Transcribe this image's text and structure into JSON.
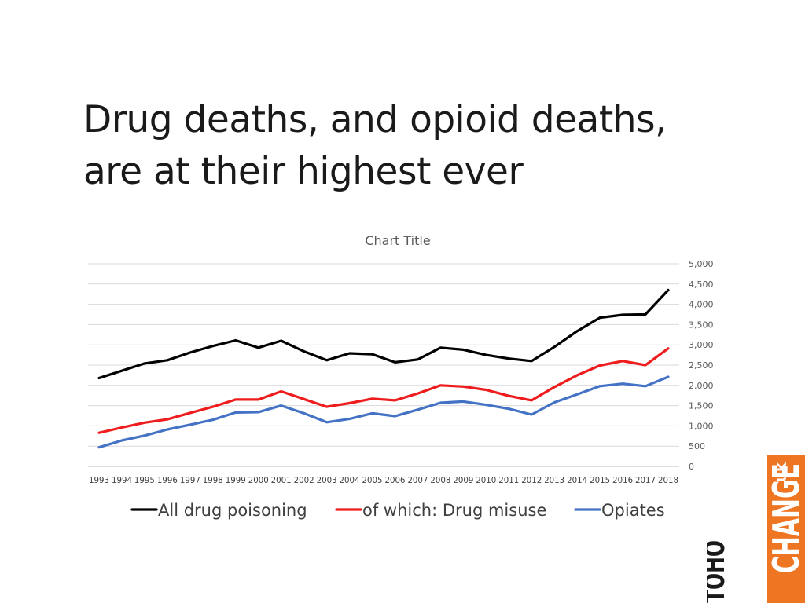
{
  "slide": {
    "title_line1": "Drug deaths, and opioid deaths,",
    "title_line2": "are at their highest ever"
  },
  "logo": {
    "text_vertical_left": "TOHO",
    "text_vertical_right": "CHANGE",
    "text_superscript": "UK",
    "colors": {
      "left": "#1a1a1a",
      "right": "#ee7623"
    }
  },
  "chart_data": {
    "type": "line",
    "title": "Chart Title",
    "x": [
      "1993",
      "1994",
      "1995",
      "1996",
      "1997",
      "1998",
      "1999",
      "2000",
      "2001",
      "2002",
      "2003",
      "2004",
      "2005",
      "2006",
      "2007",
      "2008",
      "2009",
      "2010",
      "2011",
      "2012",
      "2013",
      "2014",
      "2015",
      "2016",
      "2017",
      "2018"
    ],
    "yticks": [
      "0",
      "500",
      "1,000",
      "1,500",
      "2,000",
      "2,500",
      "3,000",
      "3,500",
      "4,000",
      "4,500",
      "5,000"
    ],
    "ylim": [
      0,
      5000
    ],
    "y_axis_side": "right",
    "grid": true,
    "legend_position": "bottom",
    "series": [
      {
        "name": "All drug poisoning",
        "color": "#000000",
        "values": [
          2180,
          2360,
          2540,
          2620,
          2810,
          2970,
          3110,
          2930,
          3100,
          2840,
          2620,
          2790,
          2770,
          2570,
          2640,
          2930,
          2880,
          2750,
          2660,
          2600,
          2950,
          3340,
          3670,
          3740,
          3750,
          4350
        ]
      },
      {
        "name": "of which: Drug misuse",
        "color": "#ee1c1c",
        "values": [
          830,
          960,
          1080,
          1160,
          1320,
          1470,
          1650,
          1650,
          1850,
          1660,
          1470,
          1560,
          1670,
          1630,
          1800,
          2000,
          1970,
          1890,
          1740,
          1630,
          1960,
          2250,
          2490,
          2600,
          2500,
          2910
        ]
      },
      {
        "name": "Opiates",
        "color": "#4472c4",
        "values": [
          470,
          640,
          760,
          910,
          1030,
          1150,
          1330,
          1340,
          1500,
          1310,
          1090,
          1170,
          1310,
          1240,
          1400,
          1570,
          1600,
          1520,
          1420,
          1280,
          1580,
          1780,
          1980,
          2040,
          1980,
          2210
        ]
      }
    ]
  }
}
